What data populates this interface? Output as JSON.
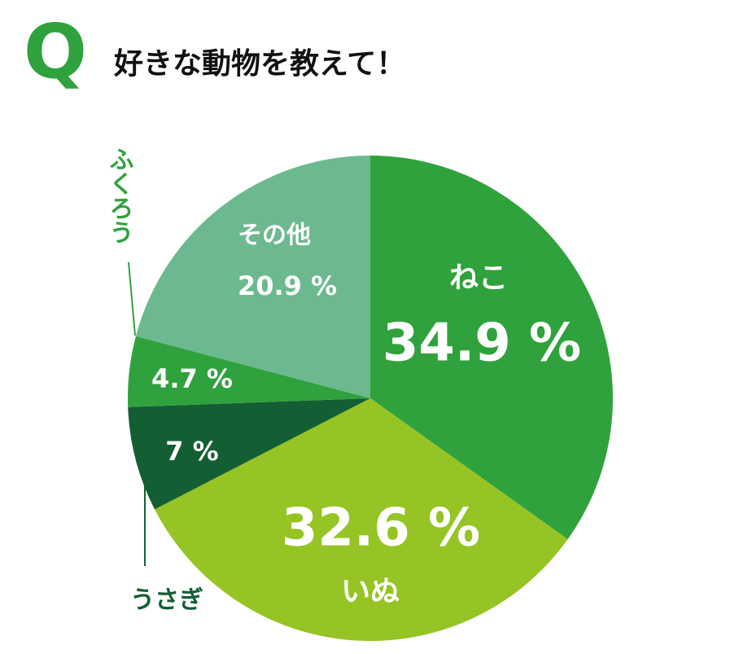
{
  "q_label": "Q",
  "chart_data": {
    "type": "pie",
    "title": "好きな動物を教えて！",
    "categories": [
      "ねこ",
      "いぬ",
      "うさぎ",
      "ふくろう",
      "その他"
    ],
    "values": [
      34.9,
      32.6,
      7,
      4.7,
      20.9
    ],
    "value_labels": [
      "34.9 %",
      "32.6 %",
      "7 %",
      "4.7 %",
      "20.9 %"
    ],
    "colors": [
      "#30a23d",
      "#95c424",
      "#145e34",
      "#30a23d",
      "#6cb98f"
    ]
  }
}
